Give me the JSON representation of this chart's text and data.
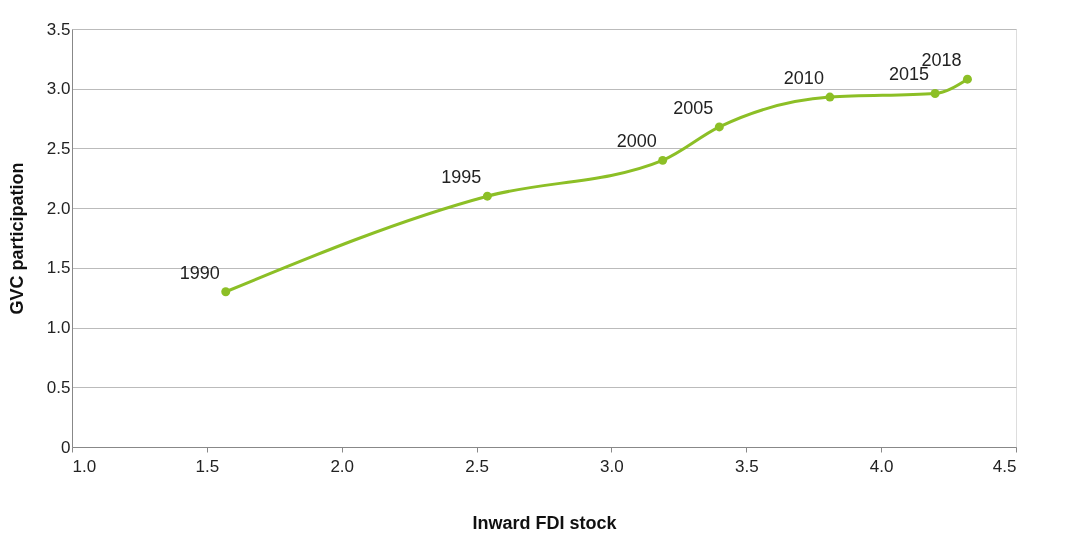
{
  "chart_data": {
    "type": "line",
    "xlabel": "Inward FDI stock",
    "ylabel": "GVC participation",
    "x": [
      1.57,
      2.54,
      3.19,
      3.4,
      3.81,
      4.2,
      4.32
    ],
    "series": [
      {
        "color": "#8cbf26",
        "values": [
          1.3,
          2.1,
          2.4,
          2.68,
          2.93,
          2.96,
          3.08
        ]
      }
    ],
    "annotations": [
      {
        "text": "1990",
        "x": 1.57,
        "y": 1.3
      },
      {
        "text": "1995",
        "x": 2.54,
        "y": 2.1
      },
      {
        "text": "2000",
        "x": 3.19,
        "y": 2.4
      },
      {
        "text": "2005",
        "x": 3.4,
        "y": 2.68
      },
      {
        "text": "2010",
        "x": 3.81,
        "y": 2.93
      },
      {
        "text": "2015",
        "x": 4.2,
        "y": 2.96
      },
      {
        "text": "2018",
        "x": 4.32,
        "y": 3.08
      }
    ],
    "xlim": [
      1.0,
      4.5
    ],
    "xticks": [
      {
        "value": 1.0,
        "label": "1.0"
      },
      {
        "value": 1.5,
        "label": "1.5"
      },
      {
        "value": 2.0,
        "label": "2.0"
      },
      {
        "value": 2.5,
        "label": "2.5"
      },
      {
        "value": 3.0,
        "label": "3.0"
      },
      {
        "value": 3.5,
        "label": "3.5"
      },
      {
        "value": 4.0,
        "label": "4.0"
      },
      {
        "value": 4.5,
        "label": "4.5"
      }
    ],
    "ylim": [
      0,
      3.5
    ],
    "yticks": [
      0,
      0.5,
      {
        "value": 1.0,
        "label": "1.0"
      },
      1.5,
      {
        "value": 2.0,
        "label": "2.0"
      },
      2.5,
      {
        "value": 3.0,
        "label": "3.0"
      },
      3.5
    ],
    "grid": "y",
    "marker": "circle",
    "line_style": "solid"
  }
}
